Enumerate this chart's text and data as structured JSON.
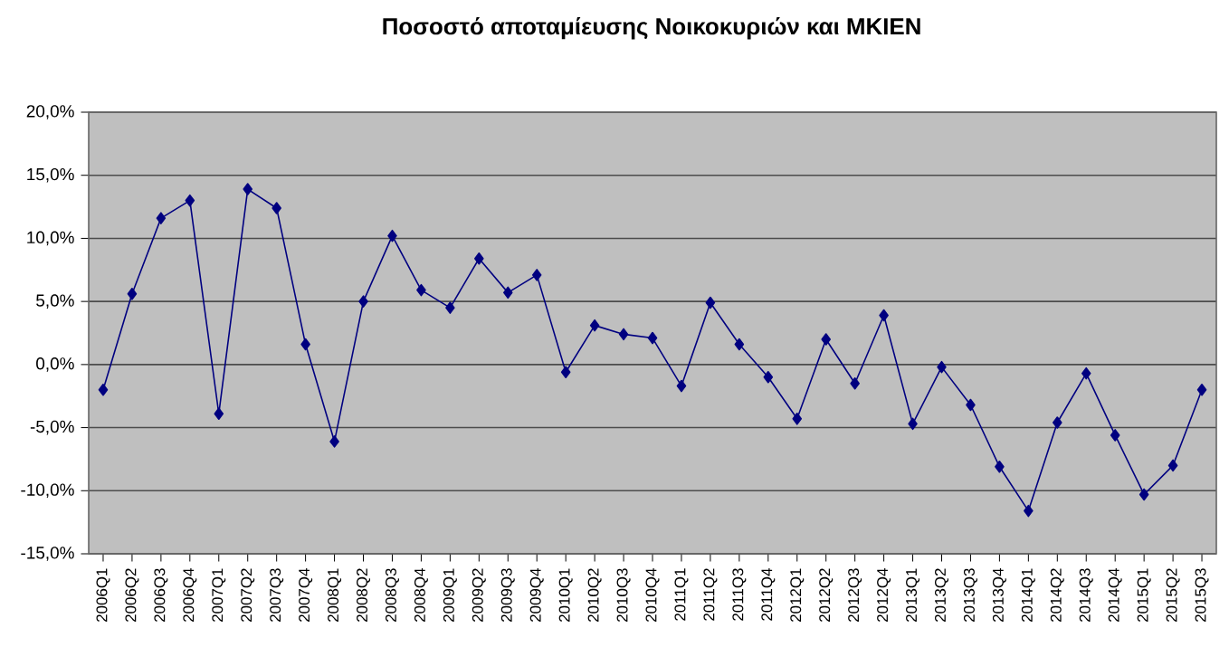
{
  "chart_data": {
    "type": "line",
    "title": "Ποσοστό αποταμίευσης Νοικοκυριών και ΜΚΙΕΝ",
    "categories": [
      "2006Q1",
      "2006Q2",
      "2006Q3",
      "2006Q4",
      "2007Q1",
      "2007Q2",
      "2007Q3",
      "2007Q4",
      "2008Q1",
      "2008Q2",
      "2008Q3",
      "2008Q4",
      "2009Q1",
      "2009Q2",
      "2009Q3",
      "2009Q4",
      "2010Q1",
      "2010Q2",
      "2010Q3",
      "2010Q4",
      "2011Q1",
      "2011Q2",
      "2011Q3",
      "2011Q4",
      "2012Q1",
      "2012Q2",
      "2012Q3",
      "2012Q4",
      "2013Q1",
      "2013Q2",
      "2013Q3",
      "2013Q4",
      "2014Q1",
      "2014Q2",
      "2014Q3",
      "2014Q4",
      "2015Q1",
      "2015Q2",
      "2015Q3"
    ],
    "series": [
      {
        "color": "#000080",
        "values": [
          -2.0,
          5.6,
          11.6,
          13.0,
          -3.9,
          13.9,
          12.4,
          1.6,
          -6.1,
          5.0,
          10.2,
          5.9,
          4.5,
          8.4,
          5.7,
          7.1,
          -0.6,
          3.1,
          2.4,
          2.1,
          -1.7,
          4.9,
          1.6,
          -1.0,
          -4.3,
          2.0,
          -1.5,
          3.9,
          -4.7,
          -0.2,
          -3.2,
          -8.1,
          -11.6,
          -4.6,
          -0.7,
          -5.6,
          -10.3,
          -8.0,
          -2.0
        ]
      }
    ],
    "ylim": [
      -15,
      20
    ],
    "yticks": [
      {
        "value": -15,
        "label": "-15,0%"
      },
      {
        "value": -10,
        "label": "-10,0%"
      },
      {
        "value": -5,
        "label": "-5,0%"
      },
      {
        "value": 0,
        "label": "0,0%"
      },
      {
        "value": 5,
        "label": "5,0%"
      },
      {
        "value": 10,
        "label": "10,0%"
      },
      {
        "value": 15,
        "label": "15,0%"
      },
      {
        "value": 20,
        "label": "20,0%"
      }
    ],
    "grid": "y",
    "marker": "diamond",
    "line_style": "solid"
  }
}
